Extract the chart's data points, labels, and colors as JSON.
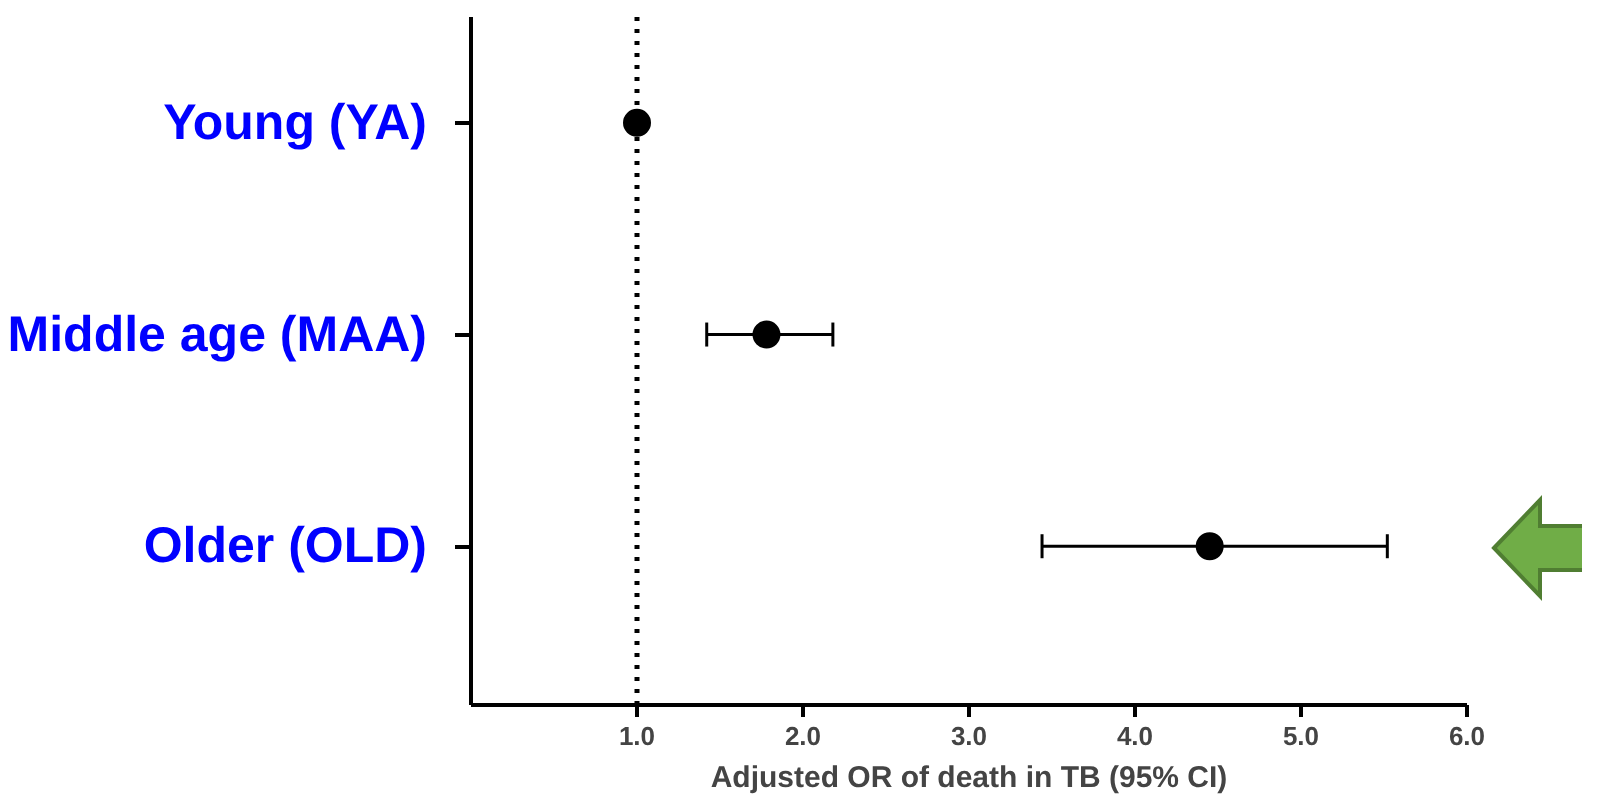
{
  "chart_data": {
    "type": "scatter",
    "xlabel": "Adjusted OR of death in TB (95% CI)",
    "categories": [
      "Young (YA)",
      "Middle age (MAA)",
      "Older (OLD)"
    ],
    "orientation": "horizontal",
    "values": [
      1.0,
      1.78,
      4.45
    ],
    "errors": [
      null,
      [
        1.42,
        2.18
      ],
      [
        3.44,
        5.52
      ]
    ],
    "colors": [
      "#000000",
      "#000000",
      "#000000"
    ],
    "xlim": [
      0,
      6
    ],
    "xticks": [
      {
        "value": 1,
        "label": "1.0"
      },
      {
        "value": 2,
        "label": "2.0"
      },
      {
        "value": 3,
        "label": "3.0"
      },
      {
        "value": 4,
        "label": "4.0"
      },
      {
        "value": 5,
        "label": "5.0"
      },
      {
        "value": 6,
        "label": "6.0"
      }
    ],
    "ref_lines": [
      {
        "axis": "x",
        "value": 1,
        "line_style": "dotted",
        "color": "#000000"
      }
    ],
    "marker": "circle",
    "grid": false
  }
}
